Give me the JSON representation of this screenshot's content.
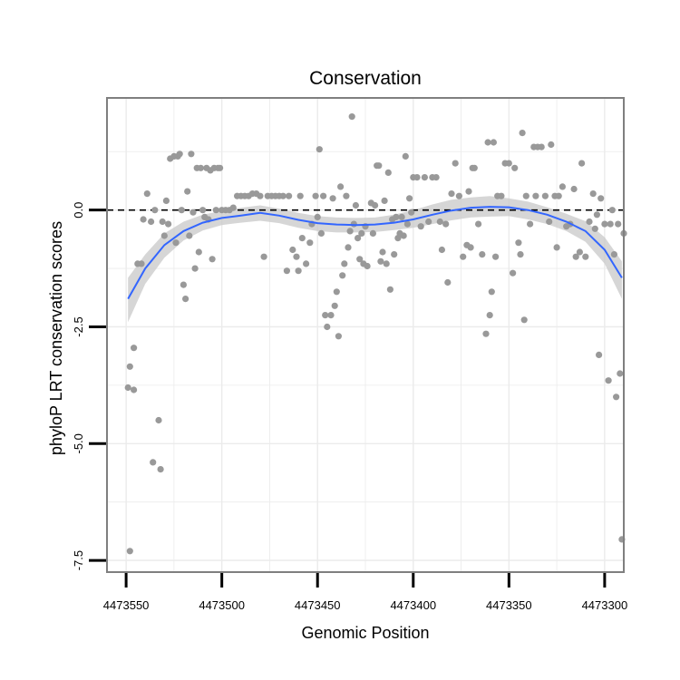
{
  "chart_data": {
    "type": "scatter",
    "title": "Conservation",
    "xlabel": "Genomic Position",
    "ylabel": "phyloP LRT conservation scores",
    "x_reversed": true,
    "xlim": [
      4473560,
      4473290
    ],
    "ylim": [
      -7.75,
      2.4
    ],
    "xticks": [
      4473550,
      4473500,
      4473450,
      4473400,
      4473350,
      4473300
    ],
    "xtick_labels": [
      "4473550",
      "4473500",
      "4473450",
      "4473400",
      "4473350",
      "4473300"
    ],
    "yticks": [
      -7.5,
      -5.0,
      -2.5,
      0.0
    ],
    "ytick_labels": [
      "-7.5",
      "-5.0",
      "-2.5",
      "0.0"
    ],
    "grid": true,
    "reference_line": {
      "y": 0,
      "style": "dashed",
      "color": "#000000"
    },
    "colors": {
      "points": "#999999",
      "smooth": "#3366ff",
      "band": "#c8c8c8",
      "grid": "#ebebeb",
      "panel_border": "#7f7f7f"
    },
    "points": [
      [
        4473548,
        -7.3
      ],
      [
        4473549,
        -3.8
      ],
      [
        4473548,
        -3.35
      ],
      [
        4473546,
        -2.95
      ],
      [
        4473546,
        -3.85
      ],
      [
        4473544,
        -1.15
      ],
      [
        4473542,
        -1.15
      ],
      [
        4473541,
        -0.2
      ],
      [
        4473539,
        0.35
      ],
      [
        4473537,
        -0.25
      ],
      [
        4473536,
        -5.4
      ],
      [
        4473535,
        0.0
      ],
      [
        4473533,
        -4.5
      ],
      [
        4473532,
        -5.55
      ],
      [
        4473531,
        -0.25
      ],
      [
        4473530,
        -0.55
      ],
      [
        4473529,
        0.2
      ],
      [
        4473528,
        -0.3
      ],
      [
        4473527,
        1.1
      ],
      [
        4473525,
        1.15
      ],
      [
        4473524,
        -0.7
      ],
      [
        4473523,
        1.15
      ],
      [
        4473522,
        1.2
      ],
      [
        4473521,
        0.0
      ],
      [
        4473520,
        -1.6
      ],
      [
        4473519,
        -1.9
      ],
      [
        4473518,
        0.4
      ],
      [
        4473517,
        -0.55
      ],
      [
        4473516,
        1.2
      ],
      [
        4473515,
        -0.05
      ],
      [
        4473514,
        -1.25
      ],
      [
        4473513,
        0.9
      ],
      [
        4473512,
        -0.9
      ],
      [
        4473511,
        0.9
      ],
      [
        4473510,
        0.0
      ],
      [
        4473509,
        -0.15
      ],
      [
        4473508,
        0.9
      ],
      [
        4473507,
        -0.2
      ],
      [
        4473506,
        0.85
      ],
      [
        4473505,
        -1.05
      ],
      [
        4473504,
        0.9
      ],
      [
        4473503,
        0.0
      ],
      [
        4473502,
        0.9
      ],
      [
        4473501,
        0.9
      ],
      [
        4473500,
        0.0
      ],
      [
        4473498,
        0.0
      ],
      [
        4473496,
        0.0
      ],
      [
        4473494,
        0.05
      ],
      [
        4473492,
        0.3
      ],
      [
        4473490,
        0.3
      ],
      [
        4473488,
        0.3
      ],
      [
        4473486,
        0.3
      ],
      [
        4473484,
        0.35
      ],
      [
        4473482,
        0.35
      ],
      [
        4473480,
        0.3
      ],
      [
        4473478,
        -1.0
      ],
      [
        4473476,
        0.3
      ],
      [
        4473474,
        0.3
      ],
      [
        4473472,
        0.3
      ],
      [
        4473470,
        0.3
      ],
      [
        4473468,
        0.3
      ],
      [
        4473466,
        -1.3
      ],
      [
        4473465,
        0.3
      ],
      [
        4473463,
        -0.85
      ],
      [
        4473461,
        -1.0
      ],
      [
        4473460,
        -1.3
      ],
      [
        4473459,
        0.3
      ],
      [
        4473458,
        -0.6
      ],
      [
        4473456,
        -1.15
      ],
      [
        4473454,
        -0.7
      ],
      [
        4473453,
        -0.3
      ],
      [
        4473451,
        0.3
      ],
      [
        4473450,
        -0.15
      ],
      [
        4473449,
        1.3
      ],
      [
        4473448,
        -0.5
      ],
      [
        4473447,
        0.3
      ],
      [
        4473446,
        -2.25
      ],
      [
        4473445,
        -2.5
      ],
      [
        4473443,
        -2.25
      ],
      [
        4473442,
        0.25
      ],
      [
        4473441,
        -2.05
      ],
      [
        4473440,
        -1.75
      ],
      [
        4473439,
        -2.7
      ],
      [
        4473438,
        0.5
      ],
      [
        4473437,
        -1.4
      ],
      [
        4473436,
        -1.15
      ],
      [
        4473435,
        0.3
      ],
      [
        4473434,
        -0.8
      ],
      [
        4473433,
        -0.45
      ],
      [
        4473432,
        2.0
      ],
      [
        4473431,
        -0.3
      ],
      [
        4473430,
        0.1
      ],
      [
        4473429,
        -0.6
      ],
      [
        4473428,
        -1.05
      ],
      [
        4473427,
        -0.5
      ],
      [
        4473426,
        -1.15
      ],
      [
        4473425,
        -0.35
      ],
      [
        4473424,
        -1.2
      ],
      [
        4473422,
        0.15
      ],
      [
        4473421,
        -0.5
      ],
      [
        4473420,
        0.1
      ],
      [
        4473419,
        0.95
      ],
      [
        4473418,
        0.95
      ],
      [
        4473417,
        -1.1
      ],
      [
        4473416,
        -0.9
      ],
      [
        4473415,
        0.2
      ],
      [
        4473414,
        -1.15
      ],
      [
        4473413,
        0.8
      ],
      [
        4473412,
        -1.7
      ],
      [
        4473411,
        -0.2
      ],
      [
        4473410,
        -0.95
      ],
      [
        4473409,
        -0.15
      ],
      [
        4473408,
        -0.6
      ],
      [
        4473407,
        -0.5
      ],
      [
        4473406,
        -0.15
      ],
      [
        4473405,
        -0.55
      ],
      [
        4473404,
        1.15
      ],
      [
        4473403,
        -0.3
      ],
      [
        4473402,
        0.25
      ],
      [
        4473401,
        -0.05
      ],
      [
        4473400,
        0.7
      ],
      [
        4473398,
        0.7
      ],
      [
        4473396,
        -0.35
      ],
      [
        4473394,
        0.7
      ],
      [
        4473392,
        -0.25
      ],
      [
        4473390,
        0.7
      ],
      [
        4473388,
        0.7
      ],
      [
        4473386,
        -0.25
      ],
      [
        4473385,
        -0.85
      ],
      [
        4473383,
        -0.3
      ],
      [
        4473382,
        -1.55
      ],
      [
        4473380,
        0.35
      ],
      [
        4473378,
        1.0
      ],
      [
        4473376,
        0.3
      ],
      [
        4473374,
        -1.0
      ],
      [
        4473372,
        -0.75
      ],
      [
        4473371,
        0.4
      ],
      [
        4473370,
        -0.8
      ],
      [
        4473369,
        0.9
      ],
      [
        4473368,
        0.9
      ],
      [
        4473366,
        -0.3
      ],
      [
        4473364,
        -0.95
      ],
      [
        4473362,
        -2.65
      ],
      [
        4473361,
        1.45
      ],
      [
        4473360,
        -2.25
      ],
      [
        4473359,
        -1.75
      ],
      [
        4473358,
        1.45
      ],
      [
        4473357,
        -1.0
      ],
      [
        4473356,
        0.3
      ],
      [
        4473354,
        0.3
      ],
      [
        4473352,
        1.0
      ],
      [
        4473350,
        1.0
      ],
      [
        4473348,
        -1.35
      ],
      [
        4473347,
        0.9
      ],
      [
        4473345,
        -0.7
      ],
      [
        4473344,
        -0.95
      ],
      [
        4473343,
        1.65
      ],
      [
        4473342,
        -2.35
      ],
      [
        4473341,
        0.3
      ],
      [
        4473339,
        -0.3
      ],
      [
        4473337,
        1.35
      ],
      [
        4473336,
        0.3
      ],
      [
        4473335,
        1.35
      ],
      [
        4473333,
        1.35
      ],
      [
        4473331,
        0.3
      ],
      [
        4473329,
        -0.25
      ],
      [
        4473328,
        1.4
      ],
      [
        4473326,
        0.3
      ],
      [
        4473325,
        -0.8
      ],
      [
        4473324,
        0.3
      ],
      [
        4473322,
        0.5
      ],
      [
        4473320,
        -0.35
      ],
      [
        4473318,
        -0.3
      ],
      [
        4473316,
        0.45
      ],
      [
        4473315,
        -1.0
      ],
      [
        4473313,
        -0.9
      ],
      [
        4473312,
        1.0
      ],
      [
        4473310,
        -1.0
      ],
      [
        4473308,
        -0.25
      ],
      [
        4473306,
        0.35
      ],
      [
        4473305,
        -0.4
      ],
      [
        4473304,
        -0.1
      ],
      [
        4473303,
        -3.1
      ],
      [
        4473302,
        0.25
      ],
      [
        4473300,
        -0.3
      ],
      [
        4473298,
        -3.65
      ],
      [
        4473297,
        -0.3
      ],
      [
        4473296,
        0.0
      ],
      [
        4473295,
        -0.95
      ],
      [
        4473294,
        -4.0
      ],
      [
        4473293,
        -0.3
      ],
      [
        4473292,
        -3.5
      ],
      [
        4473291,
        -7.05
      ],
      [
        4473290,
        -0.5
      ]
    ],
    "smooth": [
      [
        4473549,
        -1.9
      ],
      [
        4473540,
        -1.25
      ],
      [
        4473530,
        -0.75
      ],
      [
        4473520,
        -0.45
      ],
      [
        4473510,
        -0.27
      ],
      [
        4473500,
        -0.17
      ],
      [
        4473490,
        -0.12
      ],
      [
        4473480,
        -0.06
      ],
      [
        4473470,
        -0.12
      ],
      [
        4473460,
        -0.21
      ],
      [
        4473450,
        -0.28
      ],
      [
        4473440,
        -0.31
      ],
      [
        4473430,
        -0.32
      ],
      [
        4473420,
        -0.31
      ],
      [
        4473410,
        -0.27
      ],
      [
        4473400,
        -0.2
      ],
      [
        4473390,
        -0.1
      ],
      [
        4473380,
        -0.01
      ],
      [
        4473370,
        0.05
      ],
      [
        4473360,
        0.07
      ],
      [
        4473350,
        0.06
      ],
      [
        4473340,
        0.0
      ],
      [
        4473330,
        -0.1
      ],
      [
        4473320,
        -0.25
      ],
      [
        4473310,
        -0.45
      ],
      [
        4473300,
        -0.85
      ],
      [
        4473291,
        -1.45
      ]
    ],
    "band_upper": [
      [
        4473549,
        -1.45
      ],
      [
        4473540,
        -0.95
      ],
      [
        4473530,
        -0.5
      ],
      [
        4473520,
        -0.25
      ],
      [
        4473510,
        -0.1
      ],
      [
        4473500,
        -0.02
      ],
      [
        4473490,
        0.05
      ],
      [
        4473480,
        0.1
      ],
      [
        4473470,
        0.03
      ],
      [
        4473460,
        -0.06
      ],
      [
        4473450,
        -0.13
      ],
      [
        4473440,
        -0.16
      ],
      [
        4473430,
        -0.17
      ],
      [
        4473420,
        -0.16
      ],
      [
        4473410,
        -0.1
      ],
      [
        4473400,
        0.0
      ],
      [
        4473390,
        0.12
      ],
      [
        4473380,
        0.22
      ],
      [
        4473370,
        0.27
      ],
      [
        4473360,
        0.3
      ],
      [
        4473350,
        0.25
      ],
      [
        4473340,
        0.18
      ],
      [
        4473330,
        0.06
      ],
      [
        4473320,
        -0.08
      ],
      [
        4473310,
        -0.24
      ],
      [
        4473300,
        -0.58
      ],
      [
        4473291,
        -1.1
      ]
    ],
    "band_lower": [
      [
        4473549,
        -2.4
      ],
      [
        4473540,
        -1.58
      ],
      [
        4473530,
        -1.02
      ],
      [
        4473520,
        -0.65
      ],
      [
        4473510,
        -0.44
      ],
      [
        4473500,
        -0.32
      ],
      [
        4473490,
        -0.27
      ],
      [
        4473480,
        -0.23
      ],
      [
        4473470,
        -0.28
      ],
      [
        4473460,
        -0.38
      ],
      [
        4473450,
        -0.45
      ],
      [
        4473440,
        -0.48
      ],
      [
        4473430,
        -0.48
      ],
      [
        4473420,
        -0.47
      ],
      [
        4473410,
        -0.43
      ],
      [
        4473400,
        -0.38
      ],
      [
        4473390,
        -0.3
      ],
      [
        4473380,
        -0.22
      ],
      [
        4473370,
        -0.16
      ],
      [
        4473360,
        -0.14
      ],
      [
        4473350,
        -0.13
      ],
      [
        4473340,
        -0.2
      ],
      [
        4473330,
        -0.3
      ],
      [
        4473320,
        -0.45
      ],
      [
        4473310,
        -0.68
      ],
      [
        4473300,
        -1.15
      ],
      [
        4473291,
        -1.9
      ]
    ]
  }
}
